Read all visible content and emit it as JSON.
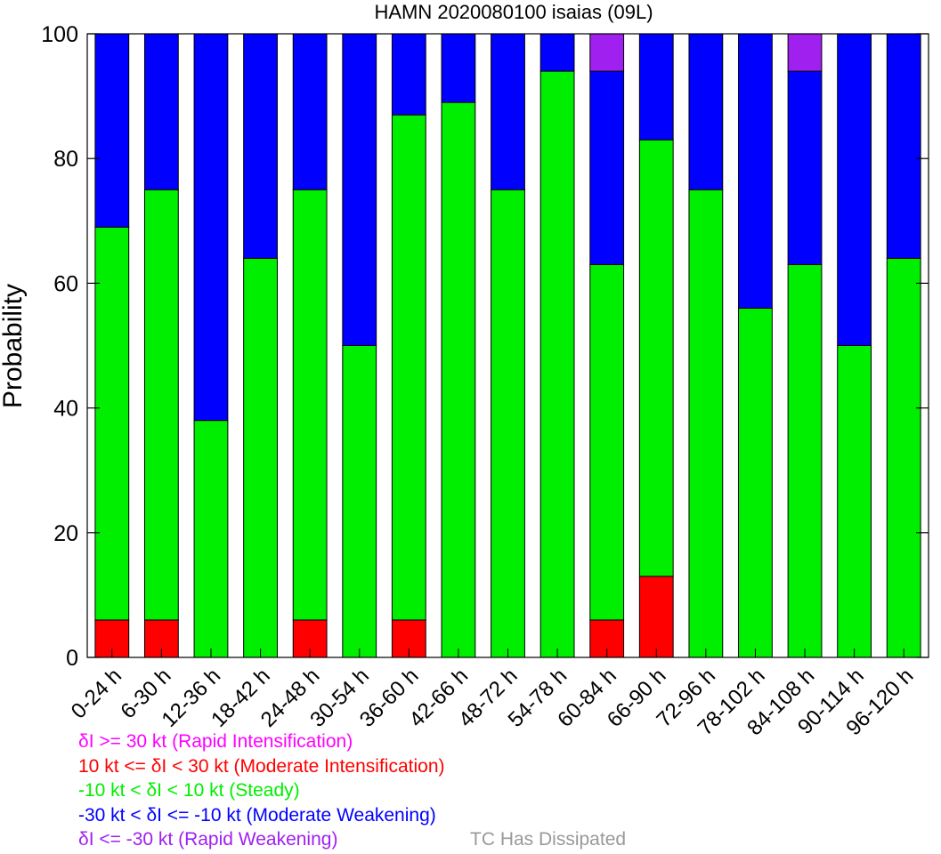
{
  "chart_data": {
    "type": "bar",
    "stacked": true,
    "title": "HAMN 2020080100 isaias (09L)",
    "xlabel": "",
    "ylabel": "Probability",
    "ylim": [
      0,
      100
    ],
    "yticks": [
      0,
      20,
      40,
      60,
      80,
      100
    ],
    "grid": false,
    "categories": [
      "0-24 h",
      "6-30 h",
      "12-36 h",
      "18-42 h",
      "24-48 h",
      "30-54 h",
      "36-60 h",
      "42-66 h",
      "48-72 h",
      "54-78 h",
      "60-84 h",
      "66-90 h",
      "72-96 h",
      "78-102 h",
      "84-108 h",
      "90-114 h",
      "96-120 h"
    ],
    "series": [
      {
        "key": "mi",
        "color": "#ff0000",
        "values": [
          6,
          6,
          0,
          0,
          6,
          0,
          6,
          0,
          0,
          0,
          6,
          13,
          0,
          0,
          0,
          0,
          0
        ]
      },
      {
        "key": "steady",
        "color": "#00ee00",
        "values": [
          63,
          69,
          38,
          64,
          69,
          50,
          81,
          89,
          75,
          94,
          57,
          70,
          75,
          56,
          63,
          50,
          64
        ]
      },
      {
        "key": "mw",
        "color": "#0000ff",
        "values": [
          31,
          25,
          62,
          36,
          25,
          50,
          13,
          11,
          25,
          6,
          31,
          17,
          25,
          44,
          31,
          50,
          36
        ]
      },
      {
        "key": "rw",
        "color": "#a020f0",
        "values": [
          0,
          0,
          0,
          0,
          0,
          0,
          0,
          0,
          0,
          0,
          6,
          0,
          0,
          0,
          6,
          0,
          0
        ]
      }
    ]
  },
  "legend": {
    "entries": [
      {
        "text": "δI >= 30 kt (Rapid Intensification)",
        "color": "#ff00ff"
      },
      {
        "text": "10 kt <= δI < 30 kt (Moderate Intensification)",
        "color": "#ff0000"
      },
      {
        "text": "-10 kt < δI < 10 kt (Steady)",
        "color": "#00ee00"
      },
      {
        "text": "-30 kt < δI <= -10 kt (Moderate Weakening)",
        "color": "#0000ff"
      },
      {
        "text": "δI <= -30 kt (Rapid Weakening)",
        "color": "#a020f0"
      }
    ],
    "dissipated": {
      "text": "TC Has Dissipated",
      "color": "#999999"
    }
  }
}
